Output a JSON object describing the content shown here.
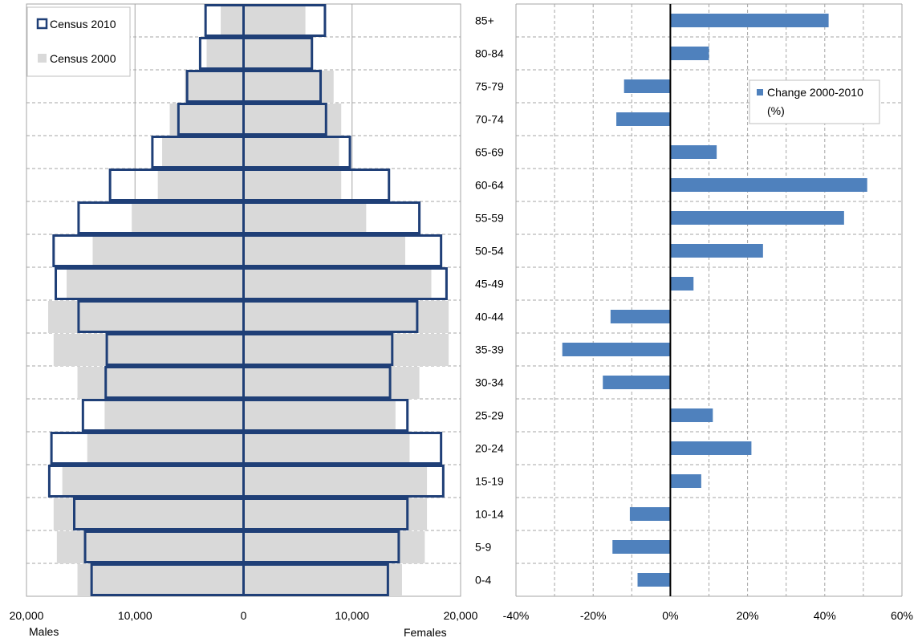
{
  "colors": {
    "census_2010_outline": "#1F3F77",
    "census_2000_fill": "#D9D9D9",
    "change_bar": "#4F81BD",
    "grid": "#A6A6A6",
    "axis": "#000000"
  },
  "chart_data": [
    {
      "type": "bar",
      "orientation": "horizontal",
      "subtype": "population-pyramid",
      "title": "",
      "categories": [
        "0-4",
        "5-9",
        "10-14",
        "15-19",
        "20-24",
        "25-29",
        "30-34",
        "35-39",
        "40-44",
        "45-49",
        "50-54",
        "55-59",
        "60-64",
        "65-69",
        "70-74",
        "75-79",
        "80-84",
        "85+"
      ],
      "x_ticks": [
        "20,000",
        "10,000",
        "0",
        "10,000",
        "20,000"
      ],
      "xlim": [
        -20000,
        20000
      ],
      "side_labels": {
        "left": "Males",
        "right": "Females"
      },
      "legend": {
        "position": "top-left",
        "entries": [
          "Census 2010",
          "Census 2000"
        ]
      },
      "grid": true,
      "series": [
        {
          "name": "Census 2000",
          "males": [
            15300,
            17200,
            17500,
            16700,
            14400,
            12800,
            15300,
            17500,
            18000,
            16300,
            13900,
            10300,
            7900,
            7500,
            6800,
            5400,
            3400,
            2100
          ],
          "females": [
            14600,
            16700,
            16900,
            16900,
            15300,
            14000,
            16200,
            18900,
            18900,
            17300,
            14900,
            11300,
            9000,
            8800,
            9000,
            8300,
            6200,
            5700
          ]
        },
        {
          "name": "Census 2010",
          "males": [
            14000,
            14600,
            15600,
            17900,
            17700,
            14800,
            12700,
            12600,
            15200,
            17300,
            17500,
            15200,
            12300,
            8400,
            6000,
            5200,
            4000,
            3500
          ],
          "females": [
            13300,
            14300,
            15100,
            18400,
            18200,
            15100,
            13500,
            13700,
            16000,
            18700,
            18200,
            16200,
            13400,
            9800,
            7600,
            7100,
            6300,
            7500
          ]
        }
      ]
    },
    {
      "type": "bar",
      "orientation": "horizontal",
      "title": "",
      "categories": [
        "0-4",
        "5-9",
        "10-14",
        "15-19",
        "20-24",
        "25-29",
        "30-34",
        "35-39",
        "40-44",
        "45-49",
        "50-54",
        "55-59",
        "60-64",
        "65-69",
        "70-74",
        "75-79",
        "80-84",
        "85+"
      ],
      "x_ticks": [
        "-40%",
        "-20%",
        "0%",
        "20%",
        "40%",
        "60%"
      ],
      "xlim": [
        -40,
        60
      ],
      "legend": {
        "position": "top-right",
        "entries": [
          "Change 2000-2010 (%)"
        ]
      },
      "legend_lines": [
        "Change 2000-2010",
        "(%)"
      ],
      "grid": true,
      "series": [
        {
          "name": "Change 2000-2010 (%)",
          "values": [
            -8.5,
            -15,
            -10.5,
            8,
            21,
            11,
            -17.5,
            -28,
            -15.5,
            6,
            24,
            45,
            51,
            12,
            -14,
            -12,
            10,
            41
          ]
        }
      ]
    }
  ]
}
